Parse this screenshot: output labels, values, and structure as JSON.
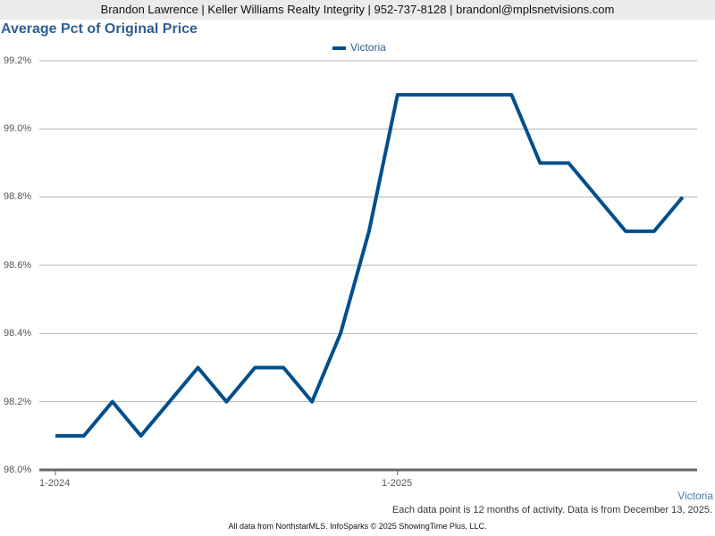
{
  "header": {
    "contact": "Brandon Lawrence | Keller Williams Realty Integrity | 952-737-8128 | brandonl@mplsnetvisions.com"
  },
  "chart": {
    "title": "Average Pct of Original Price",
    "legend": "Victoria",
    "y_ticks": [
      "99.2%",
      "99.0%",
      "98.8%",
      "98.6%",
      "98.4%",
      "98.2%",
      "98.0%"
    ],
    "x_ticks": [
      "1-2024",
      "1-2025"
    ],
    "series_label": "Victoria",
    "note": "Each data point is 12 months of activity. Data is from December 13, 2025.",
    "color": "#004f8c"
  },
  "footer": {
    "text": "All data from NorthstarMLS. InfoSparks © 2025 ShowingTime Plus, LLC."
  },
  "chart_data": {
    "type": "line",
    "title": "Average Pct of Original Price",
    "xlabel": "",
    "ylabel": "",
    "ylim": [
      98.0,
      99.2
    ],
    "grid": true,
    "legend_position": "top",
    "x": [
      "1-2024",
      "2-2024",
      "3-2024",
      "4-2024",
      "5-2024",
      "6-2024",
      "7-2024",
      "8-2024",
      "9-2024",
      "10-2024",
      "11-2024",
      "12-2024",
      "1-2025",
      "2-2025",
      "3-2025",
      "4-2025",
      "5-2025",
      "6-2025",
      "7-2025",
      "8-2025",
      "9-2025",
      "10-2025",
      "11-2025"
    ],
    "series": [
      {
        "name": "Victoria",
        "values": [
          98.1,
          98.1,
          98.2,
          98.1,
          98.2,
          98.3,
          98.2,
          98.3,
          98.3,
          98.2,
          98.4,
          98.7,
          99.1,
          99.1,
          99.1,
          99.1,
          99.1,
          98.9,
          98.9,
          98.8,
          98.7,
          98.7,
          98.8
        ]
      }
    ]
  }
}
